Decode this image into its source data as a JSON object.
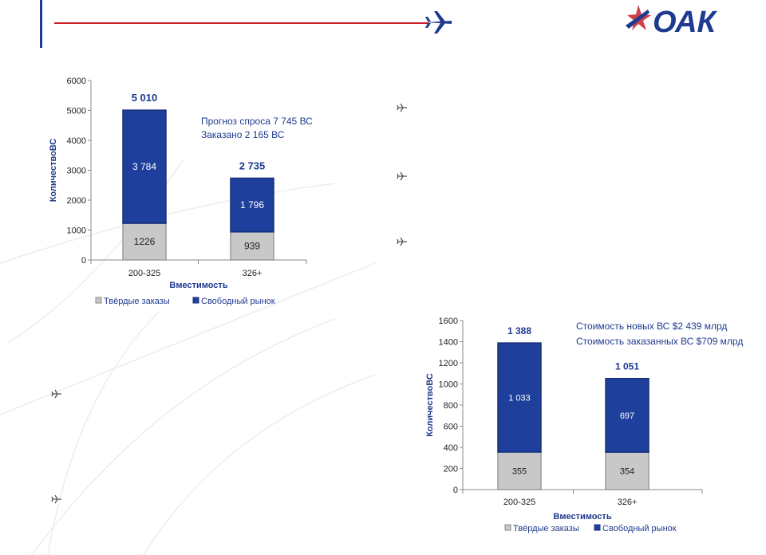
{
  "brand": {
    "logo_text": "ОАК",
    "accent_red": "#c8202a",
    "accent_blue": "#1f3a8f"
  },
  "icons": {
    "header": "airplane-icon",
    "bullets": "small-airplane-icon",
    "logo_mark": "star-plane-icon"
  },
  "colors": {
    "free_market": "#1f3f9c",
    "firm_orders": "#c8c8c8",
    "axis": "#8a8a8a",
    "label_blue": "#1f3a8f"
  },
  "chart_data": [
    {
      "type": "bar",
      "stacked": true,
      "categories": [
        "200-325",
        "326+"
      ],
      "series": [
        {
          "name": "Твёрдые заказы",
          "values": [
            1226,
            939
          ],
          "labels": [
            "1226",
            "939"
          ]
        },
        {
          "name": "Свободный рынок",
          "values": [
            3784,
            1796
          ],
          "labels": [
            "3 784",
            "1 796"
          ]
        }
      ],
      "totals": [
        "5 010",
        "2 735"
      ],
      "yticks": [
        "0",
        "1000",
        "2000",
        "3000",
        "4000",
        "5000",
        "6000"
      ],
      "ylim": [
        0,
        6000
      ],
      "xlabel": "Вместимость",
      "ylabel": "КоличествоВС",
      "annotation": [
        "Прогноз спроса  7 745 ВС",
        "Заказано  2 165 ВС"
      ],
      "legend": [
        "Твёрдые заказы",
        "Свободный рынок"
      ],
      "legend_position": "bottom"
    },
    {
      "type": "bar",
      "stacked": true,
      "categories": [
        "200-325",
        "326+"
      ],
      "series": [
        {
          "name": "Твёрдые заказы",
          "values": [
            355,
            354
          ],
          "labels": [
            "355",
            "354"
          ]
        },
        {
          "name": "Свободный рынок",
          "values": [
            1033,
            697
          ],
          "labels": [
            "1 033",
            "697"
          ]
        }
      ],
      "totals": [
        "1 388",
        "1 051"
      ],
      "yticks": [
        "0",
        "200",
        "400",
        "600",
        "800",
        "1000",
        "1200",
        "1400",
        "1600"
      ],
      "ylim": [
        0,
        1600
      ],
      "xlabel": "Вместимость",
      "ylabel": "КоличествоВС",
      "annotation": [
        "Стоимость новых ВС $2 439 млрд",
        "Стоимость заказанных ВС  $709 млрд"
      ],
      "legend": [
        "Твёрдые заказы",
        "Свободный рынок"
      ],
      "legend_position": "bottom"
    }
  ]
}
